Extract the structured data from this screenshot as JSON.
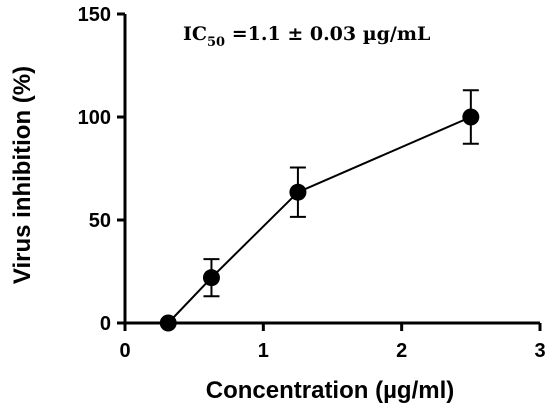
{
  "chart_data": {
    "type": "scatter",
    "title": "",
    "xlabel": "Concentration (µg/ml)",
    "ylabel": "Virus inhibition (%)",
    "xlim": [
      0,
      3
    ],
    "ylim": [
      0,
      150
    ],
    "x_ticks": [
      "0",
      "1",
      "2",
      "3"
    ],
    "y_ticks": [
      "0",
      "50",
      "100",
      "150"
    ],
    "grid": false,
    "annotation": {
      "prefix": "IC",
      "subscript": "50",
      "suffix": " =1.1 ± 0.03 µg/mL"
    },
    "series": [
      {
        "x": [
          0.3125,
          0.625,
          1.25,
          2.5
        ],
        "y": [
          0,
          22,
          63.5,
          100
        ],
        "error": [
          0,
          9,
          12,
          13
        ],
        "color": "#000000"
      }
    ]
  }
}
